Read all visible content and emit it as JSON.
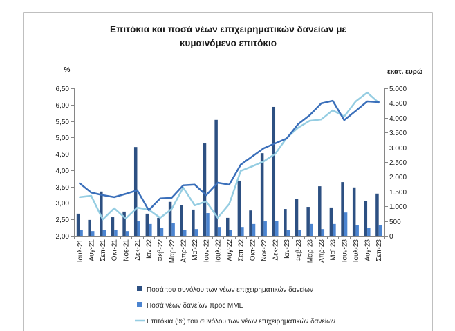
{
  "chart_data": {
    "type": "bar",
    "title_lines": [
      "Επιτόκια και ποσά νέων επιχειρηματικών δανείων με",
      "κυμαινόμενο επιτόκιο"
    ],
    "left_axis": {
      "label": "%",
      "min": 2.0,
      "max": 6.5,
      "ticks": [
        6.5,
        6.0,
        5.5,
        5.0,
        4.5,
        4.0,
        3.5,
        3.0,
        2.5,
        2.0
      ],
      "tick_labels": [
        "6,50",
        "6,00",
        "5,50",
        "5,00",
        "4,50",
        "4,00",
        "3,50",
        "3,00",
        "2,50",
        "2,00"
      ]
    },
    "right_axis": {
      "label": "εκατ. ευρώ",
      "min": 0,
      "max": 5000,
      "ticks": [
        5000,
        4500,
        4000,
        3500,
        3000,
        2500,
        2000,
        1500,
        1000,
        500,
        0
      ],
      "tick_labels": [
        "5.000",
        "4.500",
        "4.000",
        "3.500",
        "3.000",
        "2.500",
        "2.000",
        "1.500",
        "1.000",
        "500",
        "0"
      ]
    },
    "categories": [
      "Ιουλ-21",
      "Αυγ-21",
      "Σεπ-21",
      "Οκτ-21",
      "Νοε-21",
      "Δεκ-21",
      "Ιαν-22",
      "Φεβ-22",
      "Μαρ-22",
      "Απρ-22",
      "Μαϊ-22",
      "Ιουν-22",
      "Ιουλ-22",
      "Αυγ-22",
      "Σεπ-22",
      "Οκτ-22",
      "Νοε-22",
      "Δεκ-22",
      "Ιαν-23",
      "Φεβ-23",
      "Μαρ-23",
      "Απρ-23",
      "Μαϊ-23",
      "Ιουν-23",
      "Ιουλ-23",
      "Αυγ-23",
      "Σεπ-23"
    ],
    "series": [
      {
        "name": "Ποσά του συνόλου των νέων επιχειρηματικών δανείων",
        "type": "bar",
        "color": "#2d5082",
        "values": [
          750,
          540,
          1500,
          630,
          820,
          3010,
          750,
          610,
          1150,
          1030,
          890,
          3130,
          3930,
          610,
          1870,
          860,
          2800,
          4370,
          910,
          1240,
          980,
          1680,
          960,
          1820,
          1640,
          1170,
          1430
        ]
      },
      {
        "name": "Ποσά νέων δανείων προς ΜΜΕ",
        "type": "bar",
        "color": "#4b84d0",
        "values": [
          190,
          160,
          210,
          210,
          160,
          490,
          400,
          280,
          420,
          210,
          230,
          770,
          300,
          190,
          300,
          400,
          490,
          510,
          210,
          210,
          400,
          230,
          400,
          790,
          350,
          280,
          350
        ]
      },
      {
        "name": "Επιτόκια (%) του συνόλου των νέων επιχειρηματικών δανείων",
        "type": "line",
        "color": "#95cde2",
        "values": [
          3.18,
          3.22,
          2.5,
          2.84,
          2.53,
          2.86,
          2.8,
          2.55,
          2.82,
          3.47,
          2.93,
          3.05,
          2.55,
          2.97,
          3.98,
          4.12,
          4.27,
          4.5,
          4.99,
          5.3,
          5.51,
          5.55,
          5.83,
          5.64,
          6.1,
          6.37,
          6.06
        ]
      },
      {
        "type": "line",
        "color": "#3a6fba",
        "values": [
          3.6,
          3.32,
          3.24,
          3.18,
          3.28,
          3.39,
          2.78,
          3.14,
          3.16,
          3.54,
          3.56,
          3.24,
          3.62,
          3.56,
          4.17,
          4.42,
          4.67,
          4.82,
          4.97,
          5.41,
          5.68,
          6.04,
          6.12,
          5.53,
          5.81,
          6.1,
          6.08
        ]
      }
    ],
    "grid": false,
    "legend": "bottom"
  }
}
